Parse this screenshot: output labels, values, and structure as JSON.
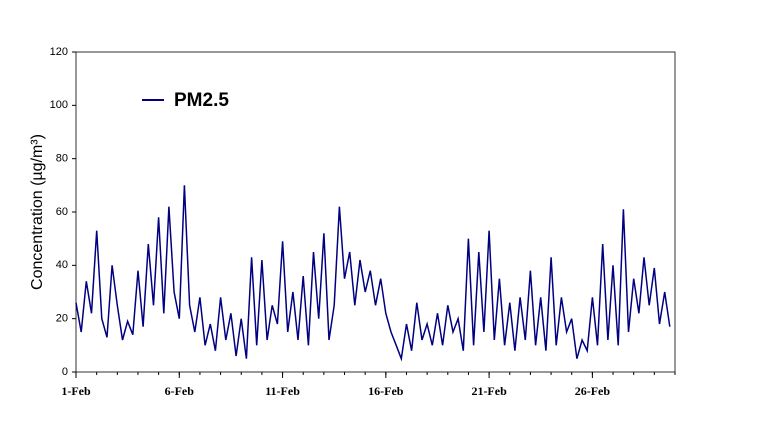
{
  "chart_data": {
    "type": "line",
    "y_label": "Concentration (µg/m³)",
    "x": [
      0,
      0.25,
      0.5,
      0.75,
      1,
      1.25,
      1.5,
      1.75,
      2,
      2.25,
      2.5,
      2.75,
      3,
      3.25,
      3.5,
      3.75,
      4,
      4.25,
      4.5,
      4.75,
      5,
      5.25,
      5.5,
      5.75,
      6,
      6.25,
      6.5,
      6.75,
      7,
      7.25,
      7.5,
      7.75,
      8,
      8.25,
      8.5,
      8.75,
      9,
      9.25,
      9.5,
      9.75,
      10,
      10.25,
      10.5,
      10.75,
      11,
      11.25,
      11.5,
      11.75,
      12,
      12.25,
      12.5,
      12.75,
      13,
      13.25,
      13.5,
      13.75,
      14,
      14.25,
      14.5,
      14.75,
      15,
      15.25,
      15.5,
      15.75,
      16,
      16.25,
      16.5,
      16.75,
      17,
      17.25,
      17.5,
      17.75,
      18,
      18.25,
      18.5,
      18.75,
      19,
      19.25,
      19.5,
      19.75,
      20,
      20.25,
      20.5,
      20.75,
      21,
      21.25,
      21.5,
      21.75,
      22,
      22.25,
      22.5,
      22.75,
      23,
      23.25,
      23.5,
      23.75,
      24,
      24.25,
      24.5,
      24.75,
      25,
      25.25,
      25.5,
      25.75,
      26,
      26.25,
      26.5,
      26.75,
      27,
      27.25,
      27.5,
      27.75,
      28,
      28.25,
      28.5,
      28.75
    ],
    "series": [
      {
        "name": "PM2.5",
        "color": "#000080",
        "values": [
          26,
          15,
          34,
          22,
          53,
          20,
          13,
          40,
          25,
          12,
          19,
          14,
          38,
          17,
          48,
          25,
          58,
          22,
          62,
          30,
          20,
          70,
          25,
          15,
          28,
          10,
          18,
          8,
          28,
          12,
          22,
          6,
          20,
          5,
          43,
          10,
          42,
          12,
          25,
          18,
          49,
          15,
          30,
          12,
          36,
          10,
          45,
          20,
          52,
          12,
          25,
          62,
          35,
          45,
          25,
          42,
          30,
          38,
          25,
          35,
          22,
          15,
          10,
          5,
          18,
          8,
          26,
          12,
          18,
          10,
          22,
          10,
          25,
          15,
          20,
          8,
          50,
          10,
          45,
          15,
          53,
          12,
          35,
          10,
          26,
          8,
          28,
          12,
          38,
          10,
          28,
          8,
          43,
          10,
          28,
          15,
          20,
          5,
          12,
          8,
          28,
          10,
          48,
          12,
          40,
          10,
          61,
          15,
          35,
          22,
          43,
          25,
          39,
          18,
          30,
          17
        ]
      }
    ],
    "xlim": [
      0,
      29
    ],
    "xticks": [
      {
        "value": 0,
        "label": "1-Feb"
      },
      {
        "value": 5,
        "label": "6-Feb"
      },
      {
        "value": 10,
        "label": "11-Feb"
      },
      {
        "value": 15,
        "label": "16-Feb"
      },
      {
        "value": 20,
        "label": "21-Feb"
      },
      {
        "value": 25,
        "label": "26-Feb"
      }
    ],
    "x_minor_ticks": [
      0,
      1,
      2,
      3,
      4,
      5,
      6,
      7,
      8,
      9,
      10,
      11,
      12,
      13,
      14,
      15,
      16,
      17,
      18,
      19,
      20,
      21,
      22,
      23,
      24,
      25,
      26,
      27,
      28,
      29
    ],
    "ylim": [
      0,
      120
    ],
    "yticks": [
      0,
      20,
      40,
      60,
      80,
      100,
      120
    ],
    "legend": "upper left"
  }
}
